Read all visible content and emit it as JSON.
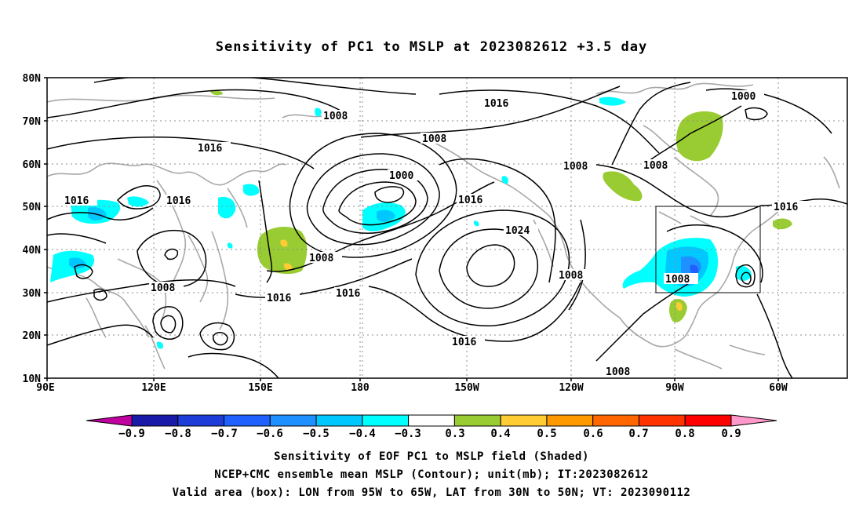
{
  "title": "Sensitivity of PC1 to MSLP at 2023082612 +3.5 day",
  "lat_labels": [
    "80N",
    "70N",
    "60N",
    "50N",
    "40N",
    "30N",
    "20N",
    "10N"
  ],
  "lon_labels": [
    "90E",
    "120E",
    "150E",
    "180",
    "150W",
    "120W",
    "90W",
    "60W"
  ],
  "contour_labels": [
    "1008",
    "1016",
    "1000",
    "1008",
    "1016",
    "1016",
    "1000",
    "1008",
    "1016",
    "1024",
    "1008",
    "1016",
    "1008",
    "1016",
    "1008",
    "1008",
    "1016",
    "1008",
    "1016",
    "1008"
  ],
  "colorbar": {
    "labels": [
      "−0.9",
      "−0.8",
      "−0.7",
      "−0.6",
      "−0.5",
      "−0.4",
      "−0.3",
      "0.3",
      "0.4",
      "0.5",
      "0.6",
      "0.7",
      "0.8",
      "0.9"
    ],
    "colors": [
      "#c000a0",
      "#1a1aa8",
      "#1e3cd8",
      "#2060ff",
      "#1e90ff",
      "#00c8ff",
      "#00ffff",
      "#ffffff",
      "#99cc33",
      "#ffcc33",
      "#ff9900",
      "#ff6600",
      "#ff3300",
      "#ff0000",
      "#ff99cc"
    ]
  },
  "captions": {
    "line1": "Sensitivity of EOF PC1 to MSLP field (Shaded)",
    "line2": "NCEP+CMC ensemble mean MSLP (Contour); unit(mb); IT:2023082612",
    "line3": "Valid area (box): LON from 95W to 65W, LAT from 30N to 50N; VT: 2023090112"
  }
}
